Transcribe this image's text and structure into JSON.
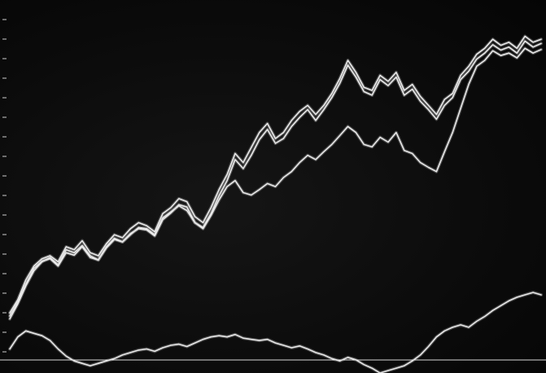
{
  "caption_fragment": "",
  "colors": {
    "background": "#0b0b0b",
    "trace": "#e9e9e9",
    "caption": "#e6e218"
  },
  "chart_data": {
    "type": "line",
    "title": "",
    "xlabel": "",
    "ylabel": "",
    "grid": false,
    "legend": "none",
    "x": [
      0,
      1,
      2,
      3,
      4,
      5,
      6,
      7,
      8,
      9,
      10,
      11,
      12,
      13,
      14,
      15,
      16,
      17,
      18,
      19,
      20,
      21,
      22,
      23,
      24,
      25,
      26,
      27,
      28,
      29,
      30,
      31,
      32,
      33,
      34,
      35,
      36,
      37,
      38,
      39,
      40,
      41,
      42,
      43,
      44,
      45,
      46,
      47,
      48,
      49,
      50,
      51,
      52,
      53,
      54,
      55,
      56,
      57,
      58,
      59,
      60,
      61,
      62,
      63,
      64,
      65,
      66
    ],
    "ylim": [
      -100,
      500
    ],
    "series": [
      {
        "values": [
          0,
          22,
          55,
          78,
          90,
          95,
          85,
          110,
          105,
          120,
          100,
          95,
          115,
          130,
          125,
          140,
          150,
          145,
          135,
          165,
          175,
          190,
          185,
          160,
          150,
          175,
          205,
          230,
          265,
          250,
          275,
          300,
          315,
          290,
          300,
          320,
          335,
          345,
          330,
          345,
          365,
          390,
          420,
          400,
          375,
          370,
          395,
          385,
          400,
          370,
          380,
          360,
          345,
          330,
          355,
          365,
          395,
          410,
          430,
          440,
          455,
          445,
          450,
          440,
          460,
          450,
          455
        ]
      },
      {
        "values": [
          -10,
          15,
          45,
          70,
          85,
          92,
          80,
          105,
          100,
          112,
          95,
          88,
          108,
          122,
          118,
          132,
          140,
          138,
          128,
          155,
          166,
          180,
          176,
          150,
          142,
          165,
          195,
          220,
          255,
          240,
          262,
          288,
          305,
          282,
          290,
          310,
          325,
          338,
          320,
          338,
          358,
          382,
          412,
          392,
          368,
          362,
          388,
          378,
          392,
          362,
          372,
          352,
          338,
          322,
          345,
          358,
          388,
          402,
          422,
          432,
          446,
          437,
          442,
          432,
          452,
          442,
          448
        ]
      },
      {
        "values": [
          -5,
          18,
          48,
          74,
          86,
          90,
          78,
          100,
          96,
          110,
          92,
          88,
          110,
          124,
          118,
          130,
          142,
          140,
          130,
          158,
          168,
          178,
          170,
          150,
          140,
          162,
          188,
          210,
          220,
          200,
          196,
          205,
          215,
          210,
          225,
          235,
          250,
          262,
          255,
          268,
          280,
          295,
          310,
          300,
          280,
          276,
          292,
          284,
          300,
          270,
          265,
          250,
          242,
          235,
          268,
          300,
          340,
          380,
          410,
          420,
          436,
          428,
          432,
          424,
          440,
          432,
          438
        ]
      },
      {
        "values": [
          -60,
          -40,
          -30,
          -34,
          -38,
          -46,
          -60,
          -72,
          -80,
          -84,
          -88,
          -84,
          -80,
          -76,
          -70,
          -66,
          -62,
          -60,
          -64,
          -58,
          -54,
          -52,
          -56,
          -50,
          -44,
          -40,
          -38,
          -40,
          -36,
          -42,
          -44,
          -46,
          -44,
          -50,
          -54,
          -58,
          -55,
          -60,
          -66,
          -70,
          -76,
          -80,
          -74,
          -78,
          -86,
          -92,
          -100,
          -96,
          -92,
          -88,
          -80,
          -70,
          -56,
          -40,
          -30,
          -24,
          -20,
          -24,
          -14,
          -6,
          4,
          12,
          20,
          26,
          30,
          34,
          30
        ]
      }
    ]
  }
}
